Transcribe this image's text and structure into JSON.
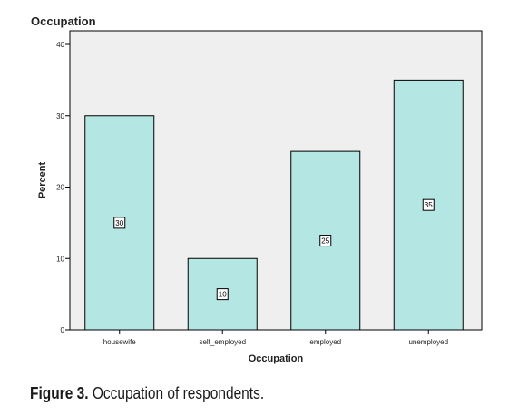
{
  "chart_data": {
    "type": "bar",
    "title": "Occupation",
    "xlabel": "Occupation",
    "ylabel": "Percent",
    "categories": [
      "housewife",
      "self_employed",
      "employed",
      "unemployed"
    ],
    "values": [
      30,
      10,
      25,
      35
    ],
    "value_labels": [
      "30",
      "10",
      "25",
      "35"
    ],
    "yticks": [
      0,
      10,
      20,
      30,
      40
    ],
    "ylim": [
      0,
      40
    ],
    "grid": false,
    "legend": "none",
    "colors": {
      "bar": "#b4e6e3",
      "plot_background": "#efefef",
      "outline": "#000000"
    }
  },
  "figure": {
    "label": "Figure 3.",
    "text": " Occupation of respondents."
  }
}
